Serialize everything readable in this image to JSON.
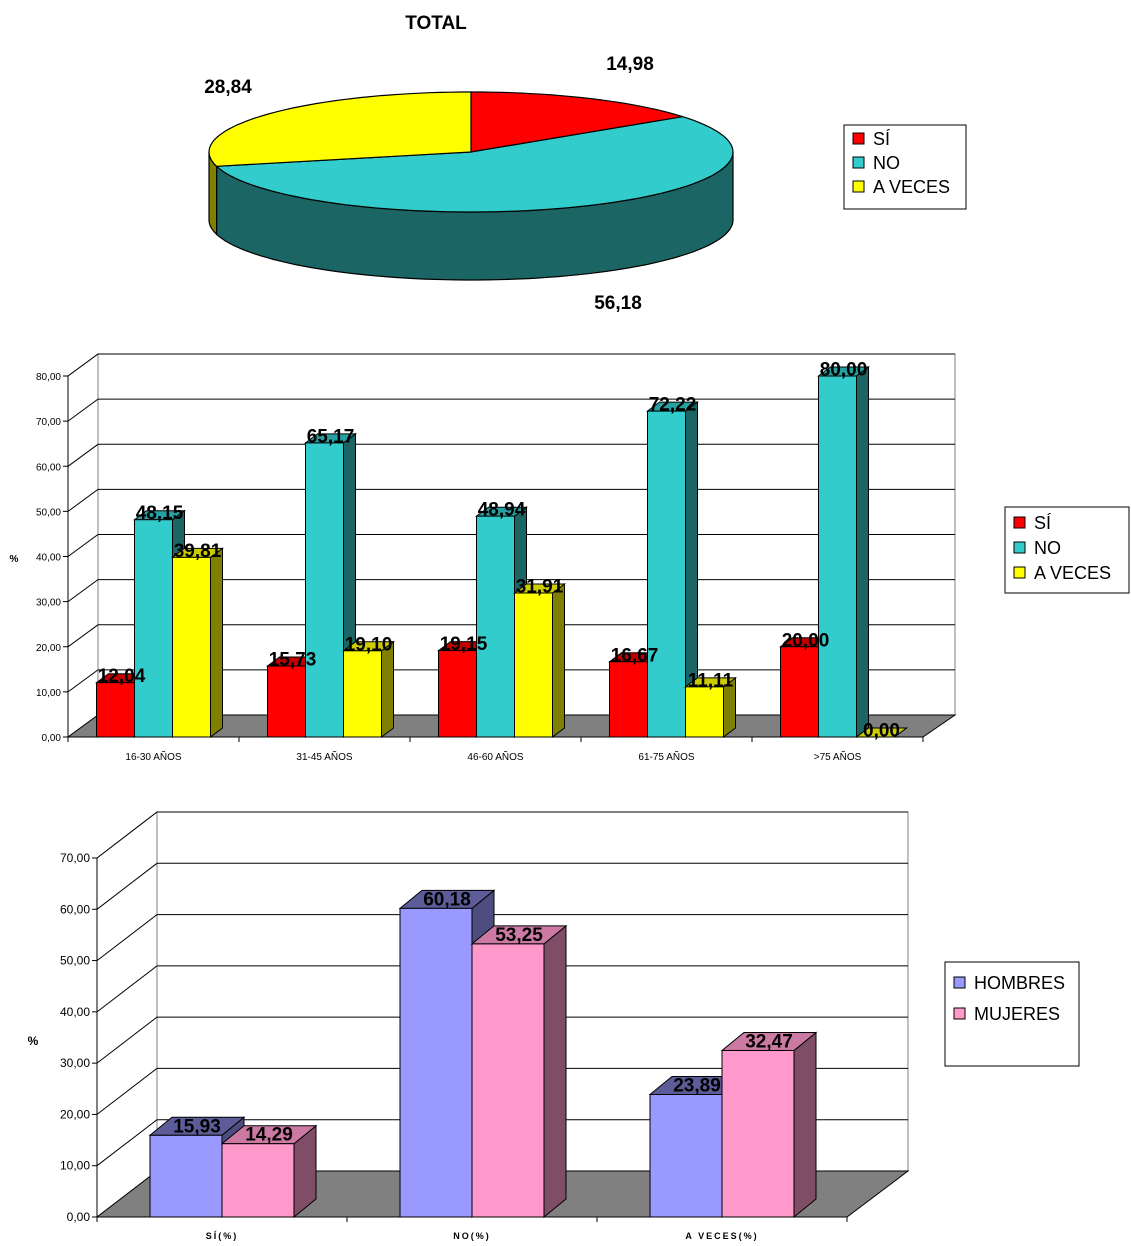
{
  "chart_data": [
    {
      "type": "pie",
      "title": "TOTAL",
      "slices": [
        {
          "label": "SÍ",
          "value": 14.98,
          "display": "14,98",
          "color": "#FF0000",
          "side": "#800000"
        },
        {
          "label": "NO",
          "value": 56.18,
          "display": "56,18",
          "color": "#33CCCC",
          "side": "#1B6565"
        },
        {
          "label": "A VECES",
          "value": 28.84,
          "display": "28,84",
          "color": "#FFFF00",
          "side": "#808000"
        }
      ],
      "legend": {
        "placement": "right",
        "entries": [
          "SÍ",
          "NO",
          "A VECES"
        ]
      }
    },
    {
      "type": "bar",
      "categories": [
        "16-30 AÑOS",
        "31-45 AÑOS",
        "46-60 AÑOS",
        "61-75 AÑOS",
        ">75 AÑOS"
      ],
      "series": [
        {
          "name": "SÍ",
          "values": [
            12.04,
            15.73,
            19.15,
            16.67,
            20.0
          ],
          "labels": [
            "12,04",
            "15,73",
            "19,15",
            "16,67",
            "20,00"
          ],
          "color": "#FF0000",
          "side": "#800000",
          "top": "#C00000"
        },
        {
          "name": "NO",
          "values": [
            48.15,
            65.17,
            48.94,
            72.22,
            80.0
          ],
          "labels": [
            "48,15",
            "65,17",
            "48,94",
            "72,22",
            "80,00"
          ],
          "color": "#33CCCC",
          "side": "#1B6565",
          "top": "#26A0A0"
        },
        {
          "name": "A VECES",
          "values": [
            39.81,
            19.1,
            31.91,
            11.11,
            0.0
          ],
          "labels": [
            "39,81",
            "19,10",
            "31,91",
            "11,11",
            "0,00"
          ],
          "color": "#FFFF00",
          "side": "#808000",
          "top": "#CCCC00"
        }
      ],
      "ylabel": "%",
      "ylim": [
        0,
        80
      ],
      "yticks": [
        "0,00",
        "10,00",
        "20,00",
        "30,00",
        "40,00",
        "50,00",
        "60,00",
        "70,00",
        "80,00"
      ],
      "grid": true,
      "legend": {
        "placement": "right",
        "entries": [
          "SÍ",
          "NO",
          "A VECES"
        ]
      }
    },
    {
      "type": "bar",
      "categories": [
        "SÍ(%)",
        "NO(%)",
        "A VECES(%)"
      ],
      "series": [
        {
          "name": "HOMBRES",
          "values": [
            15.93,
            60.18,
            23.89
          ],
          "labels": [
            "15,93",
            "60,18",
            "23,89"
          ],
          "color": "#9999FF",
          "side": "#4D4D80",
          "top": "#5C5C99"
        },
        {
          "name": "MUJERES",
          "values": [
            14.29,
            53.25,
            32.47
          ],
          "labels": [
            "14,29",
            "53,25",
            "32,47"
          ],
          "color": "#FF99CC",
          "side": "#804D66",
          "top": "#CC7AA3"
        }
      ],
      "ylabel": "%",
      "ylim": [
        0,
        70
      ],
      "yticks": [
        "0,00",
        "10,00",
        "20,00",
        "30,00",
        "40,00",
        "50,00",
        "60,00",
        "70,00"
      ],
      "grid": true,
      "legend": {
        "placement": "right",
        "entries": [
          "HOMBRES",
          "MUJERES"
        ]
      }
    }
  ]
}
